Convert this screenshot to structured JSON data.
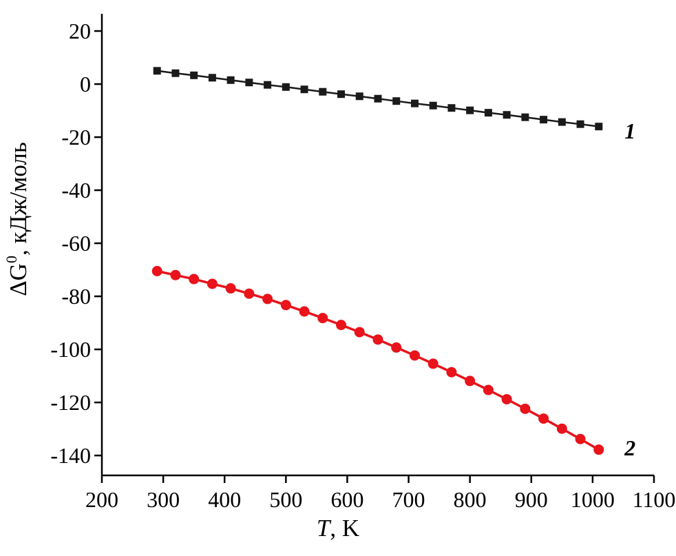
{
  "chart_data": {
    "type": "line",
    "title": "",
    "xlabel": "T, K",
    "xlabel_parts": {
      "variable": "T",
      "rest": ", K"
    },
    "ylabel": "ΔG0, кДж/моль",
    "ylabel_parts": {
      "prefix": "ΔG",
      "sup": "0",
      "rest": ", кДж/моль"
    },
    "grid": false,
    "legend_position": "none",
    "x_axis": {
      "min": 200,
      "max": 1100,
      "ticks": [
        200,
        300,
        400,
        500,
        600,
        700,
        800,
        900,
        1000,
        1100
      ]
    },
    "y_axis": {
      "min": -140,
      "max": 20,
      "axis_min": -147.5,
      "axis_max": 26.5,
      "ticks": [
        20,
        0,
        -20,
        -40,
        -60,
        -80,
        -100,
        -120,
        -140
      ]
    },
    "series": [
      {
        "name": "1",
        "color": "#1a1a1a",
        "marker": "square",
        "x": [
          290,
          320,
          350,
          380,
          410,
          440,
          470,
          500,
          530,
          560,
          590,
          620,
          650,
          680,
          710,
          740,
          770,
          800,
          830,
          860,
          890,
          920,
          950,
          980,
          1010
        ],
        "y": [
          5.0,
          4.1,
          3.3,
          2.4,
          1.5,
          0.6,
          -0.3,
          -1.1,
          -2.0,
          -2.9,
          -3.8,
          -4.6,
          -5.5,
          -6.4,
          -7.3,
          -8.1,
          -9.0,
          -9.9,
          -10.8,
          -11.6,
          -12.5,
          -13.4,
          -14.3,
          -15.1,
          -16.0
        ]
      },
      {
        "name": "2",
        "color": "#e8131b",
        "marker": "circle",
        "x": [
          290,
          320,
          350,
          380,
          410,
          440,
          470,
          500,
          530,
          560,
          590,
          620,
          650,
          680,
          710,
          740,
          770,
          800,
          830,
          860,
          890,
          920,
          950,
          980,
          1010
        ],
        "y": [
          -70.5,
          -72.0,
          -73.5,
          -75.3,
          -77.0,
          -79.0,
          -81.0,
          -83.3,
          -85.7,
          -88.2,
          -90.8,
          -93.5,
          -96.3,
          -99.3,
          -102.3,
          -105.4,
          -108.6,
          -111.9,
          -115.3,
          -118.8,
          -122.4,
          -126.1,
          -129.9,
          -133.8,
          -137.8
        ]
      }
    ],
    "annotations": [
      {
        "text": "1",
        "x": 1052,
        "y": -20.5
      },
      {
        "text": "2",
        "x": 1052,
        "y": -140.0
      }
    ]
  }
}
